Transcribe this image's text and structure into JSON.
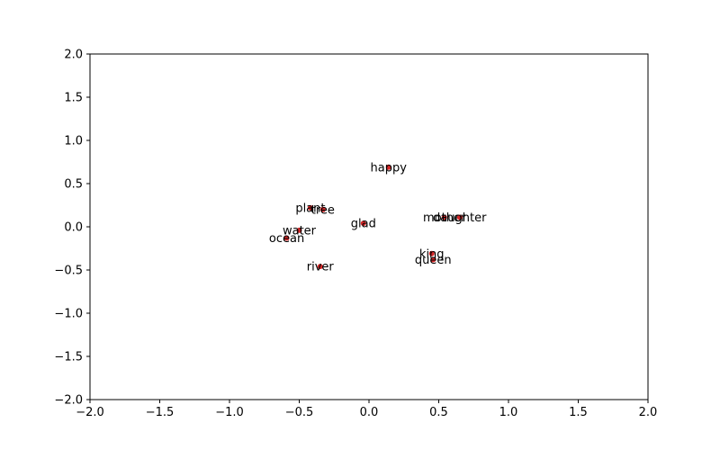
{
  "chart_data": {
    "type": "scatter",
    "title": "",
    "xlabel": "",
    "ylabel": "",
    "xlim": [
      -2.0,
      2.0
    ],
    "ylim": [
      -2.0,
      2.0
    ],
    "x_ticks": [
      "−2.0",
      "−1.5",
      "−1.0",
      "−0.5",
      "0.0",
      "0.5",
      "1.0",
      "1.5",
      "2.0"
    ],
    "y_ticks": [
      "−2.0",
      "−1.5",
      "−1.0",
      "−0.5",
      "0.0",
      "0.5",
      "1.0",
      "1.5",
      "2.0"
    ],
    "grid": false,
    "legend": "none",
    "marker_color": "#d62728",
    "points": [
      {
        "label": "happy",
        "x": 0.14,
        "y": 0.69
      },
      {
        "label": "plant",
        "x": -0.42,
        "y": 0.22
      },
      {
        "label": "tree",
        "x": -0.33,
        "y": 0.2
      },
      {
        "label": "glad",
        "x": -0.04,
        "y": 0.04
      },
      {
        "label": "mother",
        "x": 0.54,
        "y": 0.11
      },
      {
        "label": "daughter",
        "x": 0.65,
        "y": 0.11
      },
      {
        "label": "water",
        "x": -0.5,
        "y": -0.04
      },
      {
        "label": "ocean",
        "x": -0.59,
        "y": -0.13
      },
      {
        "label": "king",
        "x": 0.45,
        "y": -0.31
      },
      {
        "label": "queen",
        "x": 0.46,
        "y": -0.38
      },
      {
        "label": "river",
        "x": -0.35,
        "y": -0.46
      }
    ]
  }
}
